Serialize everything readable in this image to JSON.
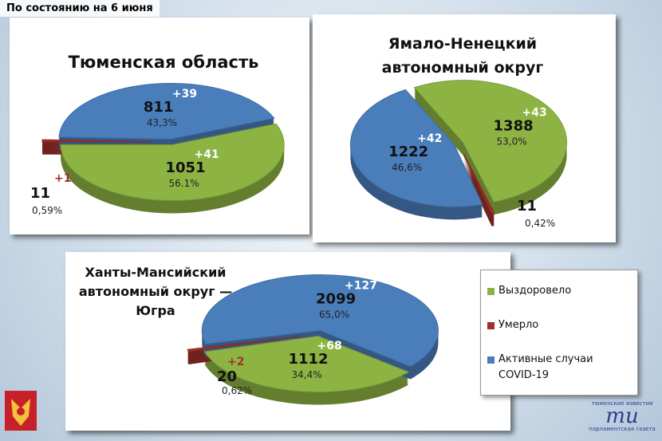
{
  "header": {
    "title": "По состоянию на 6 июня"
  },
  "chart_data": [
    {
      "type": "pie",
      "title": "Тюменская область",
      "categories": [
        "Выздоровело",
        "Умерло",
        "Активные случаи COVID-19"
      ],
      "colors": [
        "#8db443",
        "#a0302c",
        "#4a7ebb"
      ],
      "values": [
        56.1,
        0.59,
        43.3
      ],
      "value_labels": [
        "56.1%",
        "0,59%",
        "43,3%"
      ],
      "counts": [
        1051,
        11,
        811
      ],
      "deltas": [
        41,
        1,
        39
      ],
      "delta_labels": [
        "+41",
        "+1",
        "+39"
      ]
    },
    {
      "type": "pie",
      "title": "Ямало-Ненецкий\nавтономный округ",
      "categories": [
        "Выздоровело",
        "Умерло",
        "Активные случаи COVID-19"
      ],
      "colors": [
        "#8db443",
        "#a0302c",
        "#4a7ebb"
      ],
      "values": [
        53.0,
        0.42,
        46.6
      ],
      "value_labels": [
        "53,0%",
        "0,42%",
        "46,6%"
      ],
      "counts": [
        1388,
        11,
        1222
      ],
      "deltas": [
        43,
        null,
        42
      ],
      "delta_labels": [
        "+43",
        null,
        "+42"
      ]
    },
    {
      "type": "pie",
      "title": "Ханты-Мансийский\nавтономный округ —\nЮгра",
      "categories": [
        "Выздоровело",
        "Умерло",
        "Активные случаи COVID-19"
      ],
      "colors": [
        "#8db443",
        "#a0302c",
        "#4a7ebb"
      ],
      "values": [
        34.4,
        0.62,
        65.0
      ],
      "value_labels": [
        "34,4%",
        "0,62%",
        "65,0%"
      ],
      "counts": [
        1112,
        20,
        2099
      ],
      "deltas": [
        68,
        2,
        127
      ],
      "delta_labels": [
        "+68",
        "+2",
        "+127"
      ]
    }
  ],
  "logo": {
    "top": "тюменские известия",
    "mark": "тu",
    "bottom": "парламентская газета"
  }
}
